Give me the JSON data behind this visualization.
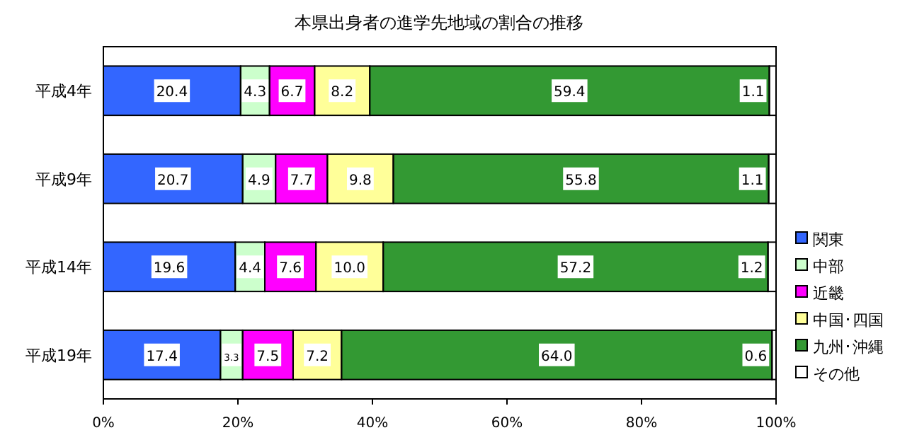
{
  "chart_data": {
    "type": "bar",
    "orientation": "horizontal",
    "stacked": true,
    "title": "本県出身者の進学先地域の割合の推移",
    "categories": [
      "平成4年",
      "平成9年",
      "平成14年",
      "平成19年"
    ],
    "series": [
      {
        "name": "関東",
        "color": "#3366ff",
        "values": [
          20.4,
          20.7,
          19.6,
          17.4
        ]
      },
      {
        "name": "中部",
        "color": "#ccffcc",
        "values": [
          4.3,
          4.9,
          4.4,
          3.3
        ]
      },
      {
        "name": "近畿",
        "color": "#ff00ff",
        "values": [
          6.7,
          7.7,
          7.6,
          7.5
        ]
      },
      {
        "name": "中国･四国",
        "color": "#ffff99",
        "values": [
          8.2,
          9.8,
          10.0,
          7.2
        ]
      },
      {
        "name": "九州･沖縄",
        "color": "#339933",
        "values": [
          59.4,
          55.8,
          57.2,
          64.0
        ]
      },
      {
        "name": "その他",
        "color": "#ffffff",
        "values": [
          1.1,
          1.1,
          1.2,
          0.6
        ]
      }
    ],
    "xlim": [
      0,
      100
    ],
    "xticks": [
      {
        "value": 0,
        "label": "0%"
      },
      {
        "value": 20,
        "label": "20%"
      },
      {
        "value": 40,
        "label": "40%"
      },
      {
        "value": 60,
        "label": "60%"
      },
      {
        "value": 80,
        "label": "80%"
      },
      {
        "value": 100,
        "label": "100%"
      }
    ],
    "value_labels": [
      [
        "20.4",
        "20.7",
        "19.6",
        "17.4"
      ],
      [
        "4.3",
        "4.9",
        "4.4",
        "3.3"
      ],
      [
        "6.7",
        "7.7",
        "7.6",
        "7.5"
      ],
      [
        "8.2",
        "9.8",
        "10.0",
        "7.2"
      ],
      [
        "59.4",
        "55.8",
        "57.2",
        "64.0"
      ],
      [
        "1.1",
        "1.1",
        "1.2",
        "0.6"
      ]
    ],
    "legend": "right"
  }
}
